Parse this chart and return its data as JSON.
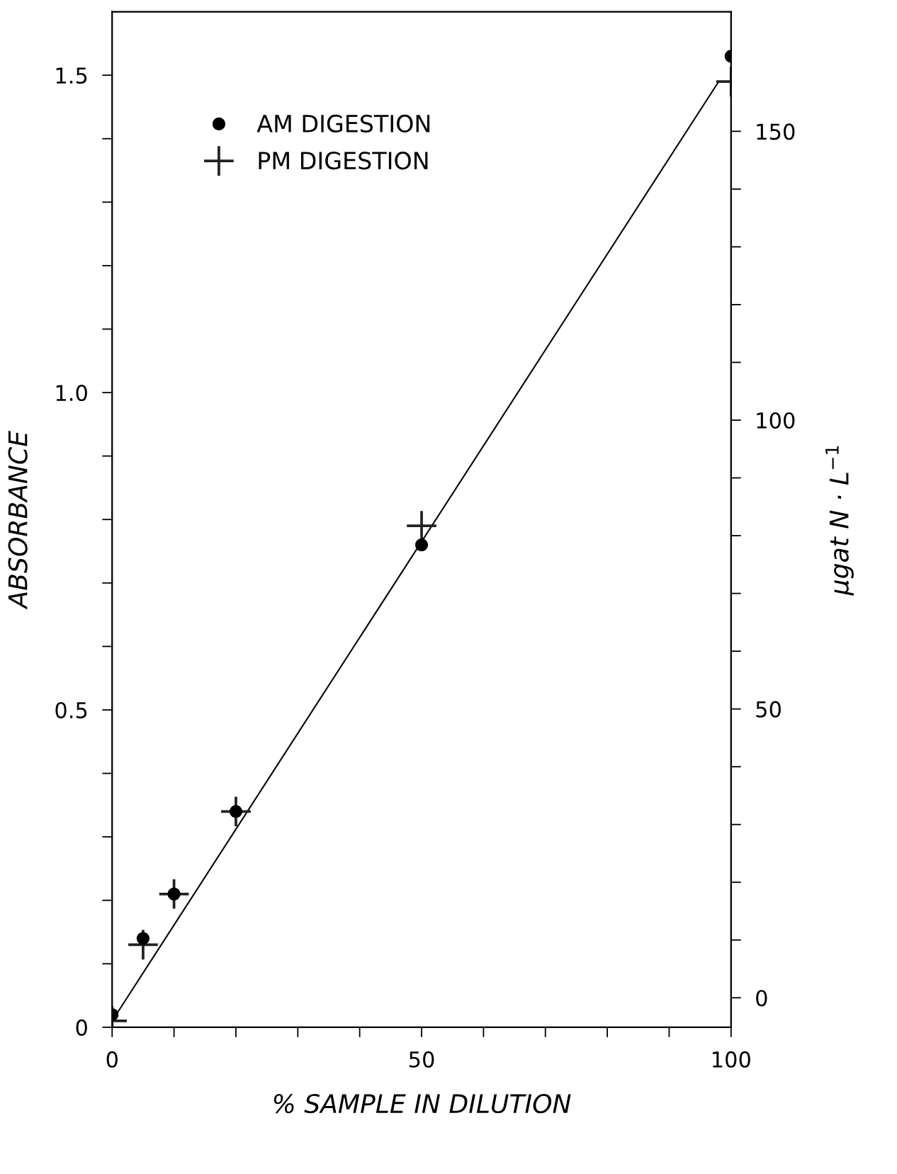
{
  "chart_data": {
    "type": "scatter",
    "xlabel": "% SAMPLE IN DILUTION",
    "ylabel": "ABSORBANCE",
    "y2label": "µgat N · L$^{−1}$",
    "series": [
      {
        "name": "AM DIGESTION",
        "color": "#000000",
        "marker": "circle",
        "x": [
          0,
          5,
          10,
          20,
          50,
          100
        ],
        "values": [
          0.02,
          0.14,
          0.21,
          0.34,
          0.76,
          1.53
        ]
      },
      {
        "name": "PM DIGESTION",
        "color": "#222222",
        "marker": "cross",
        "x": [
          0,
          5,
          10,
          20,
          50,
          100
        ],
        "values": [
          0.01,
          0.13,
          0.21,
          0.34,
          0.79,
          1.49
        ]
      },
      {
        "type": "line",
        "color": "#000000",
        "marker": "none",
        "line_style": "solid",
        "x": [
          0,
          98
        ],
        "values": [
          0.01,
          1.49
        ]
      }
    ],
    "xlim": [
      0,
      100
    ],
    "xticks": [
      0,
      {
        "value": 10,
        "label": null
      },
      {
        "value": 20,
        "label": null
      },
      {
        "value": 30,
        "label": null
      },
      {
        "value": 40,
        "label": null
      },
      50,
      {
        "value": 60,
        "label": null
      },
      {
        "value": 70,
        "label": null
      },
      {
        "value": 80,
        "label": null
      },
      {
        "value": 90,
        "label": null
      },
      100
    ],
    "ylim": [
      0,
      1.6
    ],
    "yticks": [
      0,
      {
        "value": 0.1,
        "label": null
      },
      {
        "value": 0.2,
        "label": null
      },
      {
        "value": 0.3,
        "label": null
      },
      {
        "value": 0.4,
        "label": null
      },
      0.5,
      {
        "value": 0.6,
        "label": null
      },
      {
        "value": 0.7,
        "label": null
      },
      {
        "value": 0.8,
        "label": null
      },
      {
        "value": 0.9,
        "label": null
      },
      {
        "value": 1.0,
        "label": "1.0"
      },
      {
        "value": 1.1,
        "label": null
      },
      {
        "value": 1.2,
        "label": null
      },
      {
        "value": 1.3,
        "label": null
      },
      {
        "value": 1.4,
        "label": null
      },
      1.5
    ],
    "y2lim": [
      -5.1,
      170.7
    ],
    "y2ticks": [
      0,
      {
        "value": 10,
        "label": null
      },
      {
        "value": 20,
        "label": null
      },
      {
        "value": 30,
        "label": null
      },
      {
        "value": 40,
        "label": null
      },
      50,
      {
        "value": 60,
        "label": null
      },
      {
        "value": 70,
        "label": null
      },
      {
        "value": 80,
        "label": null
      },
      {
        "value": 90,
        "label": null
      },
      100,
      {
        "value": 110,
        "label": null
      },
      {
        "value": 120,
        "label": null
      },
      {
        "value": 130,
        "label": null
      },
      {
        "value": 140,
        "label": null
      },
      150
    ],
    "grid": false,
    "legend": "top left"
  }
}
